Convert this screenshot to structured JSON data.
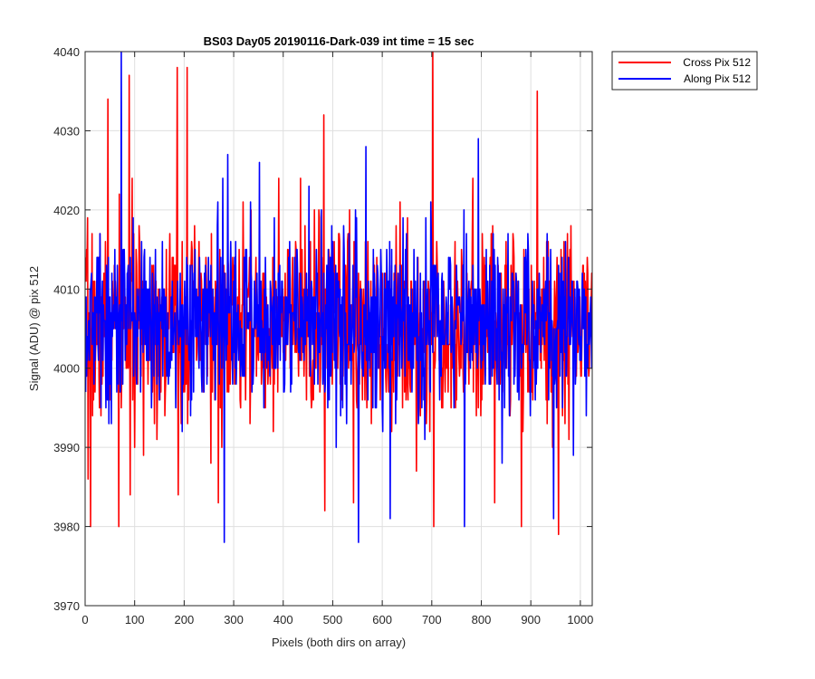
{
  "chart_data": {
    "type": "line",
    "title": "BS03 Day05 20190116-Dark-039 int time = 15 sec",
    "xlabel": "Pixels (both dirs on array)",
    "ylabel": "Signal (ADU) @ pix 512",
    "xlim": [
      0,
      1024
    ],
    "ylim": [
      3970,
      4040
    ],
    "xticks": [
      0,
      100,
      200,
      300,
      400,
      500,
      600,
      700,
      800,
      900,
      1000
    ],
    "yticks": [
      3970,
      3980,
      3990,
      4000,
      4010,
      4020,
      4030,
      4040
    ],
    "grid": true,
    "legend_position": "outside-top-right",
    "n_points": 1024,
    "series": [
      {
        "name": "Cross Pix 512",
        "color": "#ff0000",
        "mean": 4005.5,
        "spread": 6,
        "seed": 7,
        "peaks": [
          {
            "x": 5,
            "y": 3986
          },
          {
            "x": 10,
            "y": 3980
          },
          {
            "x": 45,
            "y": 4034
          },
          {
            "x": 67,
            "y": 3980
          },
          {
            "x": 88,
            "y": 4037
          },
          {
            "x": 90,
            "y": 3984
          },
          {
            "x": 185,
            "y": 4038
          },
          {
            "x": 187,
            "y": 3984
          },
          {
            "x": 205,
            "y": 4038
          },
          {
            "x": 268,
            "y": 3983
          },
          {
            "x": 481,
            "y": 4032
          },
          {
            "x": 483,
            "y": 3982
          },
          {
            "x": 541,
            "y": 3983
          },
          {
            "x": 701,
            "y": 4040
          },
          {
            "x": 703,
            "y": 3980
          },
          {
            "x": 826,
            "y": 3983
          },
          {
            "x": 880,
            "y": 3980
          },
          {
            "x": 912,
            "y": 4035
          },
          {
            "x": 955,
            "y": 3979
          }
        ]
      },
      {
        "name": "Along Pix 512",
        "color": "#0000ff",
        "mean": 4006,
        "spread": 5.5,
        "seed": 13,
        "peaks": [
          {
            "x": 72,
            "y": 4040
          },
          {
            "x": 280,
            "y": 3978
          },
          {
            "x": 287,
            "y": 4027
          },
          {
            "x": 351,
            "y": 4026
          },
          {
            "x": 451,
            "y": 4023
          },
          {
            "x": 551,
            "y": 3978
          },
          {
            "x": 566,
            "y": 4028
          },
          {
            "x": 615,
            "y": 3981
          },
          {
            "x": 687,
            "y": 4019
          },
          {
            "x": 765,
            "y": 3980
          },
          {
            "x": 793,
            "y": 4029
          },
          {
            "x": 945,
            "y": 3981
          },
          {
            "x": 985,
            "y": 3989
          }
        ]
      }
    ]
  }
}
